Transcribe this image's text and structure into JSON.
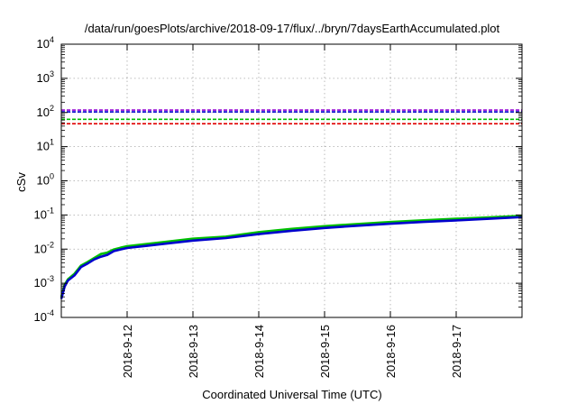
{
  "chart_data": {
    "type": "line",
    "title": "/data/run/goesPlots/archive/2018-09-17/flux/../bryn/7daysEarthAccumulated.plot",
    "xlabel": "Coordinated Universal Time (UTC)",
    "ylabel": "cSv",
    "yscale": "log",
    "ylim": [
      0.0001,
      10000
    ],
    "xlim": [
      0,
      7
    ],
    "grid": true,
    "x_ticks": [
      {
        "x": 1,
        "label": "2018-9-12"
      },
      {
        "x": 2,
        "label": "2018-9-13"
      },
      {
        "x": 3,
        "label": "2018-9-14"
      },
      {
        "x": 4,
        "label": "2018-9-15"
      },
      {
        "x": 5,
        "label": "2018-9-16"
      },
      {
        "x": 6,
        "label": "2018-9-17"
      }
    ],
    "y_ticks": [
      {
        "y": 0.0001,
        "base": "10",
        "exp": "-4"
      },
      {
        "y": 0.001,
        "base": "10",
        "exp": "-3"
      },
      {
        "y": 0.01,
        "base": "10",
        "exp": "-2"
      },
      {
        "y": 0.1,
        "base": "10",
        "exp": "-1"
      },
      {
        "y": 1,
        "base": "10",
        "exp": "0"
      },
      {
        "y": 10,
        "base": "10",
        "exp": "1"
      },
      {
        "y": 100,
        "base": "10",
        "exp": "2"
      },
      {
        "y": 1000,
        "base": "10",
        "exp": "3"
      },
      {
        "y": 10000,
        "base": "10",
        "exp": "4"
      }
    ],
    "reference_lines": [
      {
        "y": 118,
        "color": "#9400d3"
      },
      {
        "y": 104,
        "color": "#0000cd"
      },
      {
        "y": 63,
        "color": "#00c000"
      },
      {
        "y": 47,
        "color": "#e00000"
      }
    ],
    "series": [
      {
        "color": "#00c000",
        "x": [
          0,
          0.05,
          0.1,
          0.2,
          0.3,
          0.4,
          0.5,
          0.6,
          0.7,
          0.8,
          0.9,
          1.0,
          1.3,
          1.6,
          2.0,
          2.5,
          3.0,
          3.5,
          4.0,
          4.5,
          5.0,
          5.5,
          6.0,
          6.5,
          7.0
        ],
        "y": [
          0.0004,
          0.0009,
          0.0013,
          0.0019,
          0.0033,
          0.0042,
          0.0055,
          0.0072,
          0.0079,
          0.0098,
          0.011,
          0.0122,
          0.0142,
          0.0164,
          0.0202,
          0.0232,
          0.0315,
          0.0392,
          0.0471,
          0.0545,
          0.0622,
          0.0696,
          0.0772,
          0.0855,
          0.0948
        ]
      },
      {
        "color": "#0000cd",
        "x": [
          0,
          0.05,
          0.1,
          0.2,
          0.3,
          0.4,
          0.5,
          0.6,
          0.7,
          0.8,
          0.9,
          1.0,
          1.3,
          1.6,
          2.0,
          2.5,
          3.0,
          3.5,
          4.0,
          4.5,
          5.0,
          5.5,
          6.0,
          6.5,
          7.0
        ],
        "y": [
          0.00035,
          0.0008,
          0.0012,
          0.0017,
          0.003,
          0.0038,
          0.005,
          0.006,
          0.0068,
          0.0088,
          0.0098,
          0.0108,
          0.0125,
          0.0145,
          0.0178,
          0.021,
          0.0275,
          0.0345,
          0.0415,
          0.0485,
          0.0555,
          0.0625,
          0.0695,
          0.0775,
          0.0868
        ]
      }
    ]
  }
}
